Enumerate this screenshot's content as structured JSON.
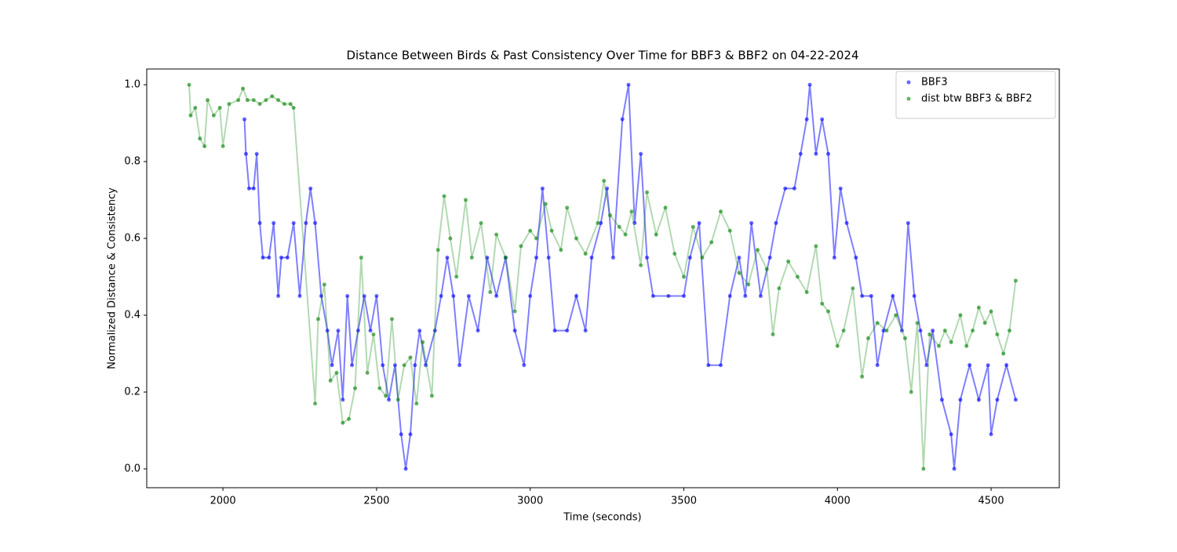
{
  "chart_data": {
    "type": "scatter",
    "title": "Distance Between Birds & Past Consistency Over Time for BBF3 & BBF2 on 04-22-2024",
    "x_label": "Time (seconds)",
    "y_label": "Normalized Distance & Consistency",
    "xlim": [
      1752,
      4722
    ],
    "ylim": [
      -0.049,
      1.041
    ],
    "xticks": [
      2000,
      2500,
      3000,
      3500,
      4000,
      4500
    ],
    "yticks": [
      {
        "value": 0,
        "label": "0.0"
      },
      0.2,
      0.4,
      0.6,
      0.8,
      {
        "value": 1,
        "label": "1.0"
      }
    ],
    "legend": "upper right",
    "connect_points": true,
    "series": [
      {
        "name": "BBF3",
        "color": "#0000ff",
        "x": [
          2070,
          2075,
          2085,
          2100,
          2110,
          2120,
          2130,
          2150,
          2165,
          2180,
          2190,
          2210,
          2230,
          2250,
          2270,
          2285,
          2300,
          2320,
          2340,
          2355,
          2375,
          2390,
          2405,
          2420,
          2440,
          2460,
          2480,
          2500,
          2520,
          2540,
          2560,
          2580,
          2595,
          2610,
          2625,
          2640,
          2660,
          2690,
          2710,
          2730,
          2750,
          2770,
          2800,
          2830,
          2860,
          2890,
          2920,
          2950,
          2980,
          3000,
          3020,
          3040,
          3060,
          3080,
          3120,
          3150,
          3180,
          3200,
          3230,
          3250,
          3270,
          3300,
          3320,
          3340,
          3360,
          3380,
          3400,
          3450,
          3500,
          3520,
          3550,
          3580,
          3620,
          3650,
          3680,
          3700,
          3720,
          3750,
          3780,
          3800,
          3830,
          3860,
          3880,
          3900,
          3910,
          3930,
          3950,
          3970,
          3990,
          4010,
          4030,
          4060,
          4080,
          4110,
          4130,
          4150,
          4180,
          4210,
          4230,
          4250,
          4270,
          4290,
          4310,
          4340,
          4370,
          4380,
          4400,
          4430,
          4460,
          4490,
          4500,
          4520,
          4550,
          4580
        ],
        "values": [
          0.91,
          0.82,
          0.73,
          0.73,
          0.82,
          0.64,
          0.55,
          0.55,
          0.64,
          0.45,
          0.55,
          0.55,
          0.64,
          0.45,
          0.64,
          0.73,
          0.64,
          0.45,
          0.36,
          0.27,
          0.36,
          0.18,
          0.45,
          0.27,
          0.36,
          0.45,
          0.36,
          0.45,
          0.27,
          0.18,
          0.27,
          0.09,
          0.0,
          0.09,
          0.27,
          0.36,
          0.27,
          0.36,
          0.45,
          0.55,
          0.45,
          0.27,
          0.45,
          0.36,
          0.55,
          0.45,
          0.55,
          0.36,
          0.27,
          0.45,
          0.55,
          0.73,
          0.55,
          0.36,
          0.36,
          0.45,
          0.36,
          0.55,
          0.64,
          0.73,
          0.55,
          0.91,
          1.0,
          0.64,
          0.82,
          0.55,
          0.45,
          0.45,
          0.45,
          0.55,
          0.64,
          0.27,
          0.27,
          0.45,
          0.55,
          0.45,
          0.64,
          0.45,
          0.55,
          0.64,
          0.73,
          0.73,
          0.82,
          0.91,
          1.0,
          0.82,
          0.91,
          0.82,
          0.55,
          0.73,
          0.64,
          0.55,
          0.45,
          0.45,
          0.27,
          0.36,
          0.45,
          0.36,
          0.64,
          0.45,
          0.36,
          0.27,
          0.36,
          0.18,
          0.09,
          0.0,
          0.18,
          0.27,
          0.18,
          0.27,
          0.09,
          0.18,
          0.27,
          0.18
        ]
      },
      {
        "name": "dist btw BBF3 & BBF2",
        "color": "#008000",
        "x": [
          1890,
          1895,
          1910,
          1925,
          1940,
          1950,
          1970,
          1990,
          2000,
          2020,
          2050,
          2065,
          2080,
          2100,
          2120,
          2140,
          2160,
          2180,
          2200,
          2220,
          2230,
          2300,
          2310,
          2330,
          2350,
          2370,
          2390,
          2410,
          2430,
          2450,
          2470,
          2490,
          2510,
          2530,
          2550,
          2570,
          2590,
          2610,
          2630,
          2650,
          2680,
          2700,
          2720,
          2740,
          2760,
          2790,
          2810,
          2840,
          2870,
          2890,
          2920,
          2950,
          2970,
          3000,
          3020,
          3050,
          3070,
          3100,
          3120,
          3150,
          3180,
          3220,
          3240,
          3260,
          3290,
          3310,
          3330,
          3360,
          3380,
          3410,
          3440,
          3470,
          3500,
          3530,
          3560,
          3590,
          3620,
          3650,
          3680,
          3710,
          3740,
          3770,
          3790,
          3810,
          3840,
          3870,
          3900,
          3930,
          3950,
          3970,
          4000,
          4020,
          4050,
          4080,
          4100,
          4130,
          4160,
          4190,
          4220,
          4240,
          4260,
          4280,
          4300,
          4330,
          4350,
          4370,
          4400,
          4420,
          4440,
          4460,
          4480,
          4500,
          4520,
          4540,
          4560,
          4580
        ],
        "values": [
          1.0,
          0.92,
          0.94,
          0.86,
          0.84,
          0.96,
          0.92,
          0.94,
          0.84,
          0.95,
          0.96,
          0.99,
          0.96,
          0.96,
          0.95,
          0.96,
          0.97,
          0.96,
          0.95,
          0.95,
          0.94,
          0.17,
          0.39,
          0.48,
          0.23,
          0.25,
          0.12,
          0.13,
          0.21,
          0.55,
          0.25,
          0.35,
          0.21,
          0.19,
          0.39,
          0.18,
          0.27,
          0.29,
          0.17,
          0.33,
          0.19,
          0.57,
          0.71,
          0.6,
          0.5,
          0.7,
          0.55,
          0.64,
          0.46,
          0.61,
          0.55,
          0.41,
          0.58,
          0.62,
          0.6,
          0.69,
          0.62,
          0.57,
          0.68,
          0.6,
          0.56,
          0.64,
          0.75,
          0.66,
          0.63,
          0.61,
          0.67,
          0.53,
          0.72,
          0.61,
          0.68,
          0.56,
          0.5,
          0.63,
          0.55,
          0.59,
          0.67,
          0.62,
          0.51,
          0.48,
          0.57,
          0.52,
          0.35,
          0.47,
          0.54,
          0.5,
          0.46,
          0.58,
          0.43,
          0.41,
          0.32,
          0.36,
          0.47,
          0.24,
          0.34,
          0.38,
          0.36,
          0.4,
          0.34,
          0.2,
          0.38,
          0.0,
          0.35,
          0.32,
          0.36,
          0.33,
          0.4,
          0.32,
          0.36,
          0.42,
          0.38,
          0.41,
          0.35,
          0.3,
          0.36,
          0.49
        ]
      }
    ]
  }
}
